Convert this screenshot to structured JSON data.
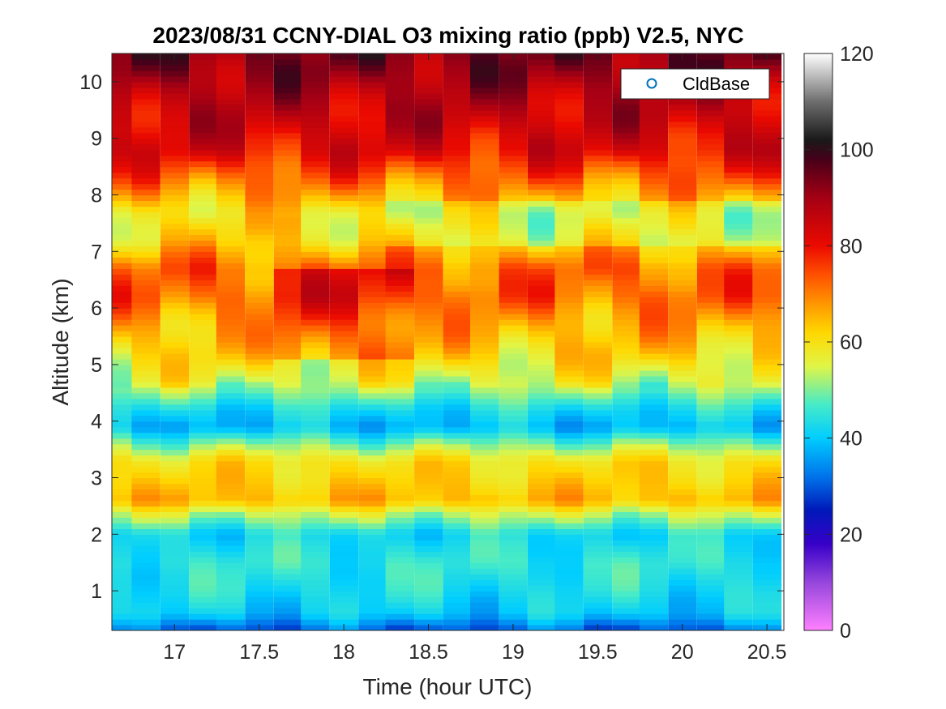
{
  "chart_data": {
    "type": "heatmap",
    "title": "2023/08/31 CCNY-DIAL O3 mixing ratio (ppb) V2.5, NYC",
    "xlabel": "Time (hour UTC)",
    "ylabel": "Altitude (km)",
    "xlim": [
      16.63,
      20.6
    ],
    "ylim": [
      0.3,
      10.5
    ],
    "x_ticks": [
      17,
      17.5,
      18,
      18.5,
      19,
      19.5,
      20,
      20.5
    ],
    "x_tick_labels": [
      "17",
      "17.5",
      "18",
      "18.5",
      "19",
      "19.5",
      "20",
      "20.5"
    ],
    "y_ticks": [
      1,
      2,
      3,
      4,
      5,
      6,
      7,
      8,
      9,
      10
    ],
    "y_tick_labels": [
      "1",
      "2",
      "3",
      "4",
      "5",
      "6",
      "7",
      "8",
      "9",
      "10"
    ],
    "colorbar": {
      "clim": [
        0,
        120
      ],
      "ticks": [
        0,
        20,
        40,
        60,
        80,
        100,
        120
      ],
      "tick_labels": [
        "0",
        "20",
        "40",
        "60",
        "80",
        "100",
        "120"
      ]
    },
    "legend": {
      "entries": [
        "CldBase"
      ],
      "placement": "top-right",
      "marker": "circle"
    },
    "time_step_hours": 0.1667,
    "times": [
      16.67,
      16.83,
      17.0,
      17.17,
      17.33,
      17.5,
      17.67,
      17.83,
      18.0,
      18.17,
      18.33,
      18.5,
      18.67,
      18.83,
      19.0,
      19.17,
      19.33,
      19.5,
      19.67,
      19.83,
      20.0,
      20.17,
      20.33,
      20.5
    ],
    "altitude_profile_km": [
      0.3,
      0.6,
      1.0,
      1.5,
      2.0,
      2.4,
      2.6,
      3.0,
      3.3,
      3.6,
      3.9,
      4.2,
      4.7,
      5.2,
      5.7,
      6.2,
      6.7,
      7.2,
      7.7,
      8.2,
      8.8,
      9.3,
      9.8,
      10.2,
      10.5
    ],
    "typical_o3_profile_ppb": [
      30,
      40,
      43,
      45,
      42,
      55,
      65,
      62,
      60,
      50,
      38,
      42,
      55,
      62,
      66,
      72,
      72,
      62,
      60,
      70,
      82,
      85,
      88,
      92,
      94
    ],
    "cloud_base_km": []
  }
}
